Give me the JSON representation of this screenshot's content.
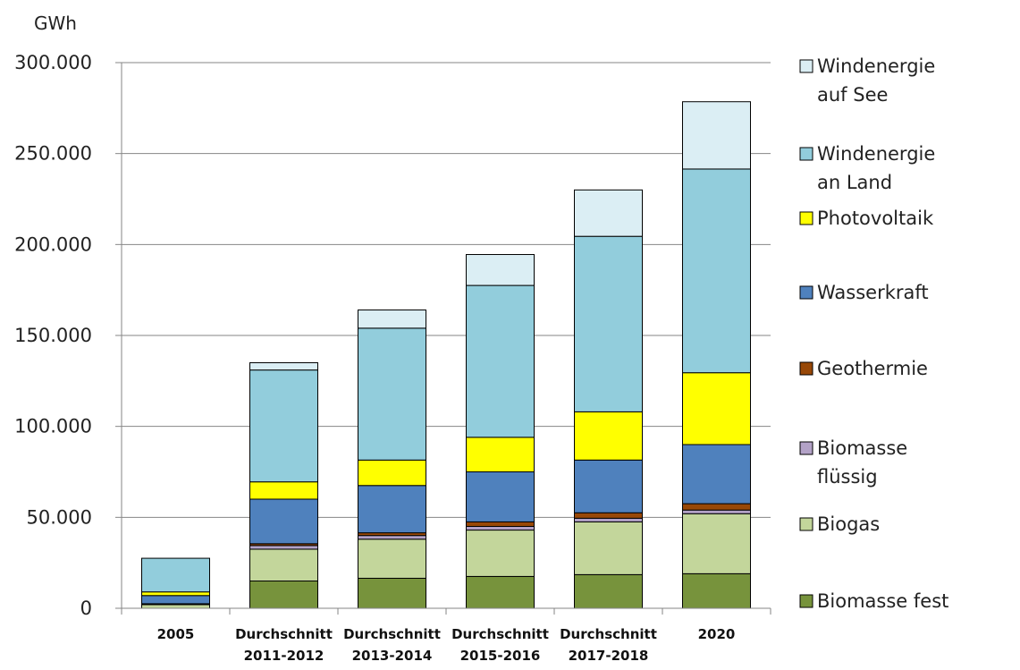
{
  "chart_data": {
    "type": "bar",
    "stacked": true,
    "title": "",
    "unit_label": "GWh",
    "xlabel": "",
    "ylabel": "",
    "ylim": [
      0,
      300000
    ],
    "yticks": [
      0,
      50000,
      100000,
      150000,
      200000,
      250000,
      300000
    ],
    "ytick_labels": [
      "0",
      "50.000",
      "100.000",
      "150.000",
      "200.000",
      "250.000",
      "300.000"
    ],
    "grid": "horizontal",
    "legend_position": "right",
    "categories": [
      [
        "2005"
      ],
      [
        "Durchschnitt",
        "2011-2012"
      ],
      [
        "Durchschnitt",
        "2013-2014"
      ],
      [
        "Durchschnitt",
        "2015-2016"
      ],
      [
        "Durchschnitt",
        "2017-2018"
      ],
      [
        "2020"
      ]
    ],
    "series": [
      {
        "name": "Biomasse fest",
        "color": "#77933c",
        "values": [
          0,
          15000,
          16500,
          17500,
          18500,
          19000
        ]
      },
      {
        "name": "Biogas",
        "color": "#c3d69b",
        "values": [
          2000,
          17500,
          21500,
          25500,
          29000,
          33000
        ]
      },
      {
        "name": "Biomasse flüssig",
        "color": "#b3a2c7",
        "values": [
          500,
          2000,
          2000,
          2000,
          2000,
          2000
        ]
      },
      {
        "name": "Geothermie",
        "color": "#984807",
        "values": [
          0,
          1000,
          1500,
          2500,
          3000,
          3500
        ]
      },
      {
        "name": "Wasserkraft",
        "color": "#4f81bd",
        "values": [
          4500,
          24500,
          26000,
          27500,
          29000,
          32500
        ]
      },
      {
        "name": "Photovoltaik",
        "color": "#ffff00",
        "values": [
          2000,
          9500,
          14000,
          19000,
          26500,
          39500
        ]
      },
      {
        "name": "Windenergie an Land",
        "color": "#92cddc",
        "values": [
          18500,
          61500,
          72500,
          83500,
          96500,
          112000
        ]
      },
      {
        "name": "Windenergie auf See",
        "color": "#dbeef4",
        "values": [
          0,
          4000,
          10000,
          17000,
          25500,
          37000
        ]
      }
    ],
    "legend_order": [
      7,
      6,
      5,
      4,
      3,
      2,
      1,
      0
    ],
    "legend_lines": [
      [
        "Windenergie",
        "auf See"
      ],
      [
        "Windenergie",
        "an Land"
      ],
      [
        "Photovoltaik"
      ],
      [
        "Wasserkraft"
      ],
      [
        "Geothermie"
      ],
      [
        "Biomasse",
        "flüssig"
      ],
      [
        "Biogas"
      ],
      [
        "Biomasse fest"
      ]
    ]
  }
}
